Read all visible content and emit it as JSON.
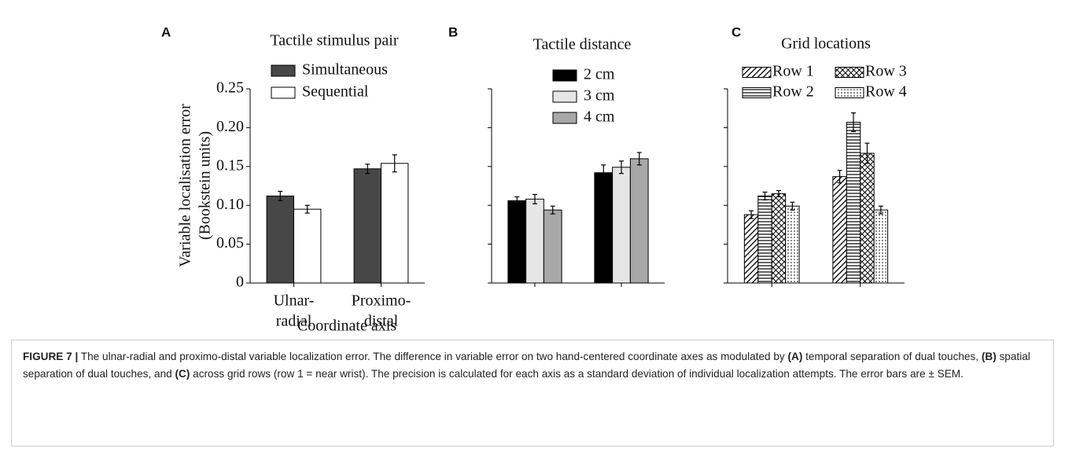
{
  "chart_data": [
    {
      "type": "bar",
      "letter": "A",
      "legend_title": "Tactile stimulus pair",
      "ylabel": [
        "Variable localisation error",
        "(Bookstein units)"
      ],
      "xlabel": "Coordinate axis",
      "categories": [
        [
          "Ulnar-",
          "radial"
        ],
        [
          "Proximo-",
          "distal"
        ]
      ],
      "series": [
        {
          "name": "Simultaneous",
          "color": "#474747",
          "values": [
            0.112,
            0.147
          ],
          "errors": [
            0.006,
            0.006
          ]
        },
        {
          "name": "Sequential",
          "color": "#ffffff",
          "values": [
            0.095,
            0.154
          ],
          "errors": [
            0.005,
            0.011
          ]
        }
      ],
      "ylim": [
        0,
        0.25
      ],
      "yticks": [
        0,
        0.05,
        {
          "value": 0.1,
          "label": "0.10"
        },
        0.15,
        {
          "value": 0.2,
          "label": "0.20"
        },
        0.25
      ],
      "tick_labels": true
    },
    {
      "type": "bar",
      "letter": "B",
      "legend_title": "Tactile distance",
      "categories": [
        null,
        null
      ],
      "series": [
        {
          "name": "2 cm",
          "color": "#000000",
          "values": [
            0.106,
            0.142
          ],
          "errors": [
            0.005,
            0.01
          ]
        },
        {
          "name": "3 cm",
          "color": "#e6e6e6",
          "values": [
            0.108,
            0.149
          ],
          "errors": [
            0.006,
            0.008
          ]
        },
        {
          "name": "4 cm",
          "color": "#a8a8a8",
          "values": [
            0.094,
            0.16
          ],
          "errors": [
            0.005,
            0.008
          ]
        }
      ],
      "ylim": [
        0,
        0.25
      ],
      "yticks": [
        0,
        0.05,
        0.1,
        0.15,
        0.2,
        0.25
      ],
      "tick_labels": false
    },
    {
      "type": "bar",
      "letter": "C",
      "legend_title": "Grid locations",
      "categories": [
        null,
        null
      ],
      "series": [
        {
          "name": "Row 1",
          "color": "#000000",
          "pattern": "diagonal",
          "values": [
            0.088,
            0.137
          ],
          "errors": [
            0.005,
            0.008
          ]
        },
        {
          "name": "Row 2",
          "color": "#000000",
          "pattern": "horizontal",
          "values": [
            0.112,
            0.207
          ],
          "errors": [
            0.005,
            0.012
          ]
        },
        {
          "name": "Row 3",
          "color": "#000000",
          "pattern": "crosshatch",
          "values": [
            0.115,
            0.167
          ],
          "errors": [
            0.004,
            0.013
          ]
        },
        {
          "name": "Row 4",
          "color": "#000000",
          "pattern": "dots",
          "values": [
            0.099,
            0.094
          ],
          "errors": [
            0.005,
            0.005
          ]
        }
      ],
      "ylim": [
        0,
        0.25
      ],
      "yticks": [
        0,
        0.05,
        0.1,
        0.15,
        0.2,
        0.25
      ],
      "tick_labels": false
    }
  ],
  "caption": [
    {
      "text": "FIGURE 7 |",
      "bold": true
    },
    {
      "text": " The ulnar-radial and proximo-distal variable localization error. The difference in variable error on two hand-centered coordinate axes as modulated by ",
      "bold": false
    },
    {
      "text": "(A)",
      "bold": true
    },
    {
      "text": " temporal separation of dual touches, ",
      "bold": false
    },
    {
      "text": "(B)",
      "bold": true
    },
    {
      "text": " spatial separation of dual touches, and ",
      "bold": false
    },
    {
      "text": "(C)",
      "bold": true
    },
    {
      "text": " across grid rows (row 1 = near wrist). The precision is calculated for each axis as a standard deviation of individual localization attempts. The error bars are ± SEM.",
      "bold": false
    }
  ]
}
